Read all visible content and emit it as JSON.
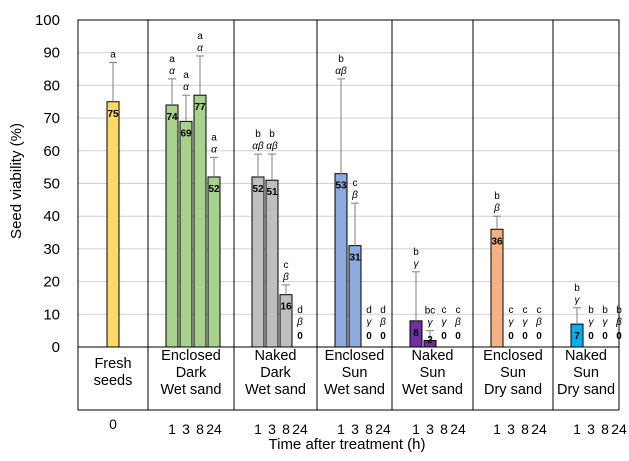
{
  "chart_data": {
    "type": "bar",
    "ylabel": "Seed viability (%)",
    "xlabel": "Time after treatment (h)",
    "ylim": [
      0,
      100
    ],
    "yticks": [
      "0",
      "10",
      "20",
      "30",
      "40",
      "50",
      "60",
      "70",
      "80",
      "90",
      "100"
    ],
    "grid": "horizontal",
    "groups": [
      {
        "label": [
          "Fresh",
          "seeds"
        ],
        "color": "#ffd966",
        "bars": [
          {
            "time": "0",
            "value": 75,
            "error": 12,
            "label": "75",
            "letters": [
              "a",
              ""
            ]
          }
        ]
      },
      {
        "label": [
          "Enclosed",
          "Dark",
          "Wet sand"
        ],
        "color": "#a9d18e",
        "bars": [
          {
            "time": "1",
            "value": 74,
            "error": 8,
            "label": "74",
            "letters": [
              "a",
              "α"
            ]
          },
          {
            "time": "3",
            "value": 69,
            "error": 8,
            "label": "69",
            "letters": [
              "a",
              "α"
            ]
          },
          {
            "time": "8",
            "value": 77,
            "error": 12,
            "label": "77",
            "letters": [
              "a",
              "α"
            ]
          },
          {
            "time": "24",
            "value": 52,
            "error": 6,
            "label": "52",
            "letters": [
              "a",
              "α"
            ]
          }
        ]
      },
      {
        "label": [
          "Naked",
          "Dark",
          "Wet sand"
        ],
        "color": "#bfbfbf",
        "bars": [
          {
            "time": "1",
            "value": 52,
            "error": 7,
            "label": "52",
            "letters": [
              "b",
              "αβ"
            ]
          },
          {
            "time": "3",
            "value": 51,
            "error": 8,
            "label": "51",
            "letters": [
              "b",
              "αβ"
            ]
          },
          {
            "time": "8",
            "value": 16,
            "error": 3,
            "label": "16",
            "letters": [
              "c",
              "β"
            ]
          },
          {
            "time": "24",
            "value": 0,
            "error": 0,
            "label": "0",
            "letters": [
              "d",
              "β"
            ]
          }
        ]
      },
      {
        "label": [
          "Enclosed",
          "Sun",
          "Wet sand"
        ],
        "color": "#8faadc",
        "bars": [
          {
            "time": "1",
            "value": 53,
            "error": 29,
            "label": "53",
            "letters": [
              "b",
              "αβ"
            ]
          },
          {
            "time": "3",
            "value": 31,
            "error": 13,
            "label": "31",
            "letters": [
              "c",
              "β"
            ]
          },
          {
            "time": "8",
            "value": 0,
            "error": 0,
            "label": "0",
            "letters": [
              "d",
              "γ"
            ]
          },
          {
            "time": "24",
            "value": 0,
            "error": 0,
            "label": "0",
            "letters": [
              "d",
              "β"
            ]
          }
        ]
      },
      {
        "label": [
          "Naked",
          "Sun",
          "Wet sand"
        ],
        "color": "#7030a0",
        "bars": [
          {
            "time": "1",
            "value": 8,
            "error": 15,
            "label": "8",
            "letters": [
              "b",
              "γ"
            ]
          },
          {
            "time": "3",
            "value": 2,
            "error": 3,
            "label": "2",
            "letters": [
              "bc",
              "γ"
            ]
          },
          {
            "time": "8",
            "value": 0,
            "error": 0,
            "label": "0",
            "letters": [
              "c",
              "γ"
            ]
          },
          {
            "time": "24",
            "value": 0,
            "error": 0,
            "label": "0",
            "letters": [
              "c",
              "β"
            ]
          }
        ]
      },
      {
        "label": [
          "Enclosed",
          "Sun",
          "Dry sand"
        ],
        "color": "#f4b183",
        "bars": [
          {
            "time": "1",
            "value": 36,
            "error": 4,
            "label": "36",
            "letters": [
              "b",
              "β"
            ]
          },
          {
            "time": "3",
            "value": 0,
            "error": 0,
            "label": "0",
            "letters": [
              "c",
              "γ"
            ]
          },
          {
            "time": "8",
            "value": 0,
            "error": 0,
            "label": "0",
            "letters": [
              "c",
              "γ"
            ]
          },
          {
            "time": "24",
            "value": 0,
            "error": 0,
            "label": "0",
            "letters": [
              "c",
              "β"
            ]
          }
        ]
      },
      {
        "label": [
          "Naked",
          "Sun",
          "Dry sand"
        ],
        "color": "#00b0f0",
        "bars": [
          {
            "time": "1",
            "value": 7,
            "error": 5,
            "label": "7",
            "letters": [
              "b",
              "γ"
            ]
          },
          {
            "time": "3",
            "value": 0,
            "error": 0,
            "label": "0",
            "letters": [
              "b",
              "γ"
            ]
          },
          {
            "time": "8",
            "value": 0,
            "error": 0,
            "label": "0",
            "letters": [
              "b",
              "γ"
            ]
          },
          {
            "time": "24",
            "value": 0,
            "error": 0,
            "label": "0",
            "letters": [
              "b",
              "β"
            ]
          }
        ]
      }
    ]
  }
}
